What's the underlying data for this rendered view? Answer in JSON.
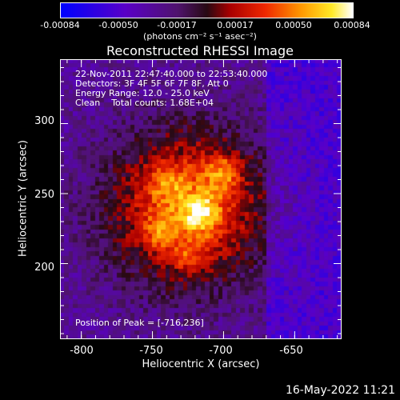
{
  "colorbar": {
    "ticks": [
      "-0.00084",
      "-0.00050",
      "-0.00017",
      "0.00017",
      "0.00050",
      "0.00084"
    ],
    "units": "(photons cm⁻² s⁻¹ asec⁻²)",
    "range": [
      -0.00084,
      0.00084
    ]
  },
  "footer": {
    "datestamp": "16-May-2022 11:21"
  },
  "chart_data": {
    "type": "heatmap",
    "title": "Reconstructed RHESSI Image",
    "xlabel": "Heliocentric X (arcsec)",
    "ylabel": "Heliocentric Y (arcsec)",
    "xlim": [
      -815,
      -617
    ],
    "ylim": [
      146,
      346
    ],
    "xticks": [
      "-800",
      "-750",
      "-700",
      "-650"
    ],
    "yticks": [
      "300",
      "250",
      "200"
    ],
    "annotations": {
      "line1": "22-Nov-2011 22:47:40.000 to 22:53:40.000",
      "line2": "Detectors: 3F 4F 5F 6F 7F 8F, Att 0",
      "line3": "Energy Range: 12.0 - 25.0 keV",
      "line4": "Clean    Total counts: 1.68E+04",
      "peak": "Position of Peak = [-716,236]"
    },
    "sources": [
      {
        "x": -716,
        "y": 236,
        "peak": 0.00084
      },
      {
        "x": -701,
        "y": 265,
        "peak": 0.0007
      },
      {
        "x": -740,
        "y": 258,
        "peak": 0.0005
      },
      {
        "x": -745,
        "y": 222,
        "peak": 0.00045
      },
      {
        "x": -724,
        "y": 205,
        "peak": 0.00038
      }
    ],
    "background_level": -0.0003,
    "grid": false
  }
}
